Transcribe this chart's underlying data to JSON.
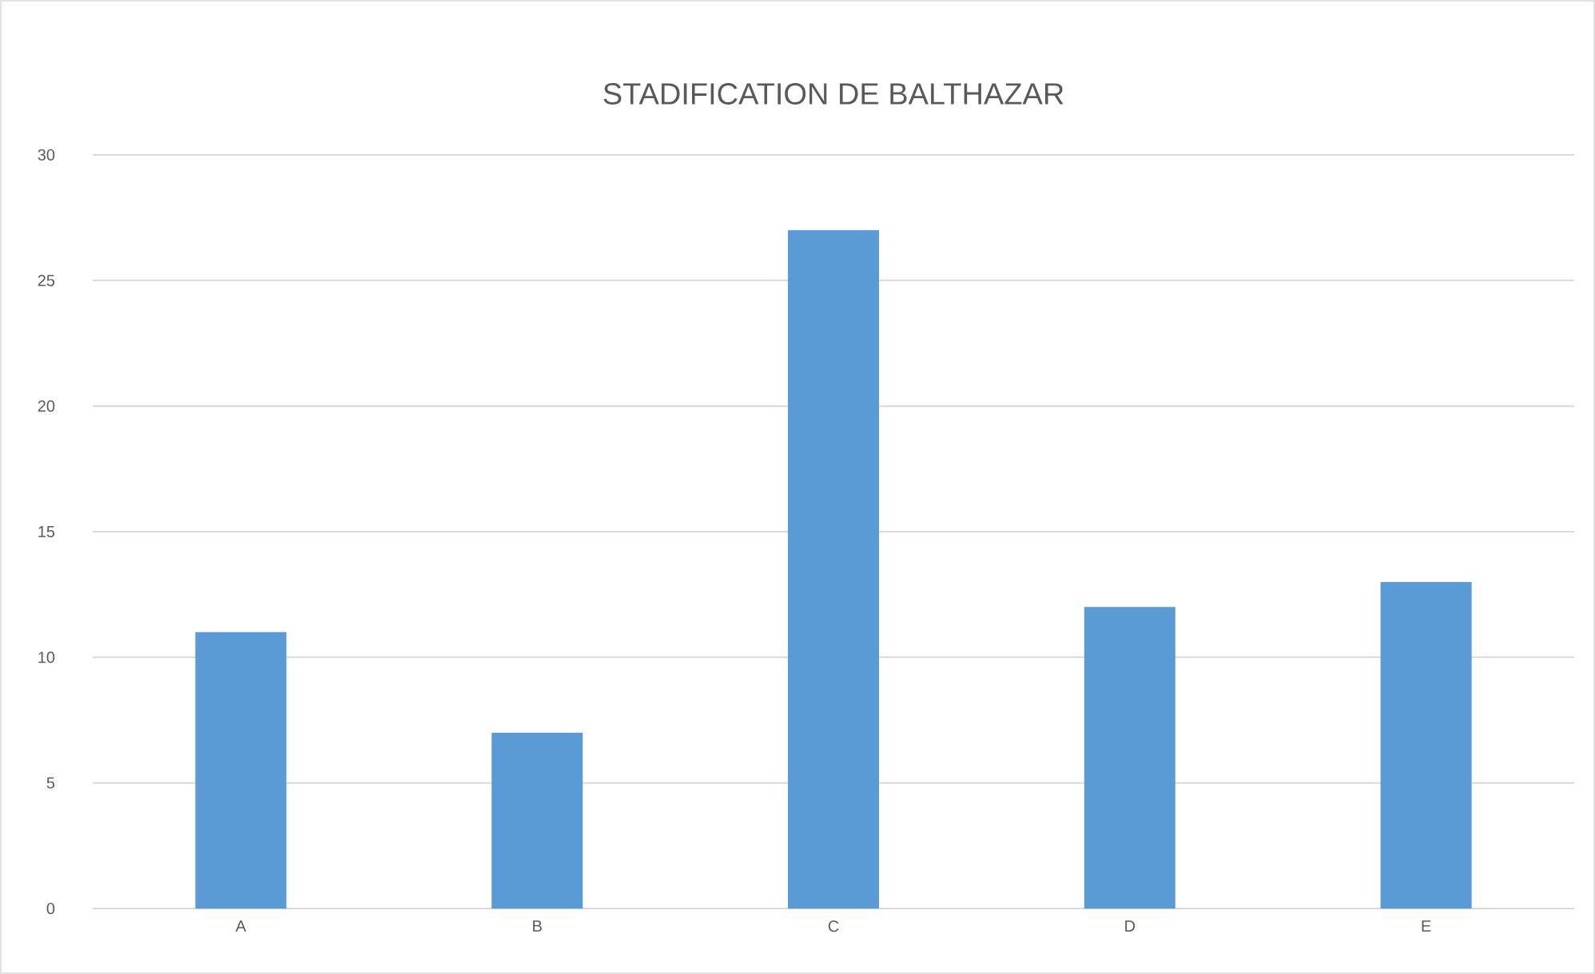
{
  "chart_data": {
    "type": "bar",
    "title": "STADIFICATION DE BALTHAZAR",
    "categories": [
      "A",
      "B",
      "C",
      "D",
      "E"
    ],
    "values": [
      11,
      7,
      27,
      12,
      13
    ],
    "color": "#5b9bd5",
    "ylim": [
      0,
      30
    ],
    "yticks": [
      0,
      5,
      10,
      15,
      20,
      25,
      30
    ],
    "grid": "y"
  }
}
